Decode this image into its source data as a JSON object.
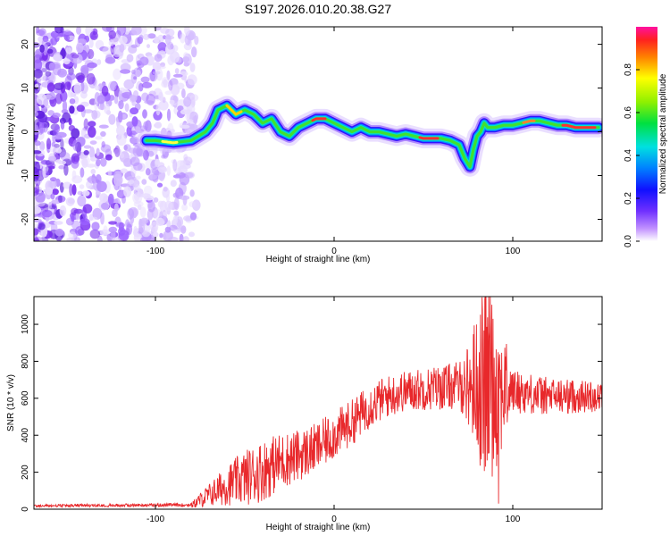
{
  "title": "S197.2026.010.20.38.G27",
  "chart_data": [
    {
      "type": "heatmap",
      "title": "S197.2026.010.20.38.G27",
      "xlabel": "Height of straight line (km)",
      "ylabel": "Frequency (Hz)",
      "xlim": [
        -168,
        150
      ],
      "ylim": [
        -25,
        24
      ],
      "xticks": [
        -100,
        0,
        100
      ],
      "yticks": [
        -20,
        -10,
        0,
        10,
        20
      ],
      "noise_region_x": [
        -168,
        -77
      ],
      "ridge": {
        "x": [
          -105,
          -100,
          -90,
          -80,
          -72,
          -68,
          -65,
          -60,
          -55,
          -50,
          -45,
          -40,
          -35,
          -30,
          -25,
          -20,
          -15,
          -10,
          -5,
          0,
          5,
          10,
          15,
          20,
          25,
          30,
          35,
          40,
          45,
          50,
          55,
          60,
          65,
          70,
          73,
          76,
          78,
          80,
          82,
          84,
          86,
          90,
          95,
          100,
          105,
          110,
          115,
          120,
          125,
          130,
          135,
          140,
          145,
          148
        ],
        "y": [
          -2,
          -2,
          -2.5,
          -2,
          0,
          2,
          5,
          6,
          4,
          5,
          4,
          2,
          3,
          0,
          -1,
          1,
          2,
          3,
          3,
          2,
          1,
          0,
          1,
          0,
          0,
          -0.5,
          -1,
          -0.5,
          -1,
          -1.5,
          -1.5,
          -1.5,
          -2,
          -3,
          -6,
          -8,
          -4,
          -1,
          0,
          2,
          1,
          1,
          1.5,
          1.5,
          2,
          2.5,
          2.5,
          2,
          1.5,
          1.5,
          1,
          1,
          1,
          1
        ]
      },
      "colorbar": {
        "label": "Normalized spectral amplitude",
        "range": [
          0,
          1
        ],
        "ticks": [
          0.0,
          0.2,
          0.4,
          0.6,
          0.8
        ],
        "tick_labels": [
          "0.0",
          "0.2",
          "0.4",
          "0.6",
          "0.8"
        ]
      }
    },
    {
      "type": "line",
      "xlabel": "Height of straight line (km)",
      "ylabel": "SNR (10 * v/v)",
      "xlim": [
        -168,
        150
      ],
      "ylim": [
        0,
        1150
      ],
      "xticks": [
        -100,
        0,
        100
      ],
      "yticks": [
        0,
        200,
        400,
        600,
        800,
        1000
      ],
      "color": "#e8282b",
      "trend": {
        "x": [
          -168,
          -80,
          -75,
          -60,
          -50,
          -40,
          -30,
          -20,
          -10,
          0,
          10,
          20,
          30,
          40,
          50,
          60,
          70,
          80,
          90,
          100,
          120,
          150
        ],
        "y": [
          15,
          20,
          50,
          130,
          170,
          210,
          260,
          290,
          330,
          400,
          470,
          560,
          610,
          640,
          650,
          660,
          670,
          680,
          670,
          640,
          610,
          610
        ]
      },
      "noise": {
        "x": [
          -168,
          -80,
          -75,
          -60,
          -50,
          -40,
          -20,
          0,
          20,
          40,
          70,
          75,
          80,
          85,
          90,
          95,
          100,
          150
        ],
        "amplitude": [
          12,
          15,
          40,
          110,
          150,
          170,
          140,
          130,
          120,
          110,
          130,
          220,
          400,
          560,
          480,
          300,
          120,
          80
        ]
      },
      "peaks": [
        {
          "x": 84.5,
          "y": 1150
        },
        {
          "x": 87.5,
          "y": 1150
        },
        {
          "x": 92,
          "y": 30
        }
      ]
    }
  ]
}
